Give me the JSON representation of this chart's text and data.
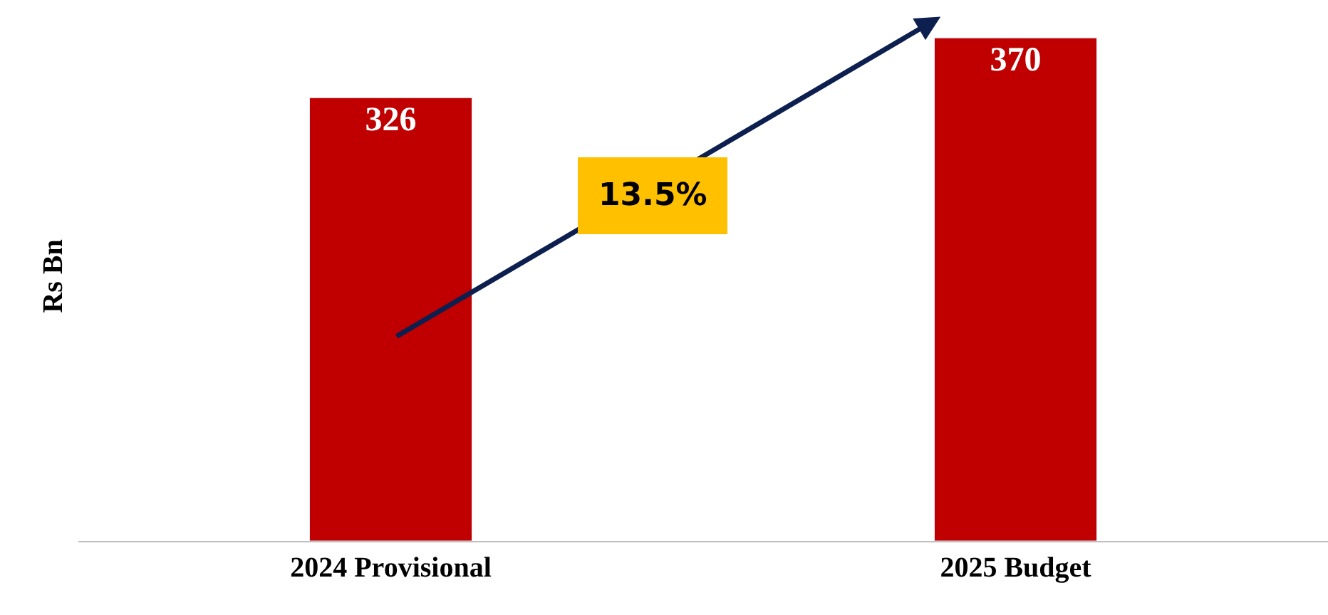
{
  "chart_data": {
    "type": "bar",
    "ylabel": "Rs Bn",
    "categories": [
      "2024 Provisional",
      "2025 Budget"
    ],
    "values": [
      326,
      370
    ],
    "color": "#c00000",
    "data_labels": true,
    "tick_labels": "x",
    "legend": false,
    "annotations": [
      "13.5%"
    ]
  }
}
